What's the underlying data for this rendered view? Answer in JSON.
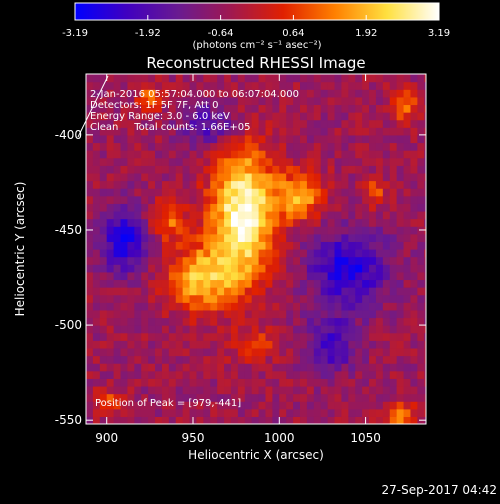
{
  "chart_data": {
    "type": "heatmap",
    "title": "Reconstructed RHESSI Image",
    "xlabel": "Heliocentric X (arcsec)",
    "ylabel": "Heliocentric Y (arcsec)",
    "xlim": [
      888,
      1085
    ],
    "ylim": [
      -552,
      -368
    ],
    "x_ticks": [
      900,
      950,
      1000,
      1050
    ],
    "y_ticks": [
      -400,
      -450,
      -500,
      -550
    ],
    "colorbar": {
      "min": -3.19,
      "max": 3.19,
      "ticks": [
        "-3.19",
        "-1.92",
        "-0.64",
        "0.64",
        "1.92",
        "3.19"
      ],
      "unit_label": "(photons cm⁻² s⁻¹ asec⁻²)",
      "colors": [
        "#0000ff",
        "#4000c0",
        "#6a1a90",
        "#a01850",
        "#e02000",
        "#ff8000",
        "#ffe040",
        "#ffffff"
      ]
    },
    "annotations": [
      "2-Jan-2016 05:57:04.000 to 06:07:04.000",
      "Detectors: 1F 5F 7F, Att 0",
      "Energy Range: 3.0 - 6.0 keV",
      "Clean     Total counts: 1.66E+05"
    ],
    "peak_label": "Position of Peak = [979,-441]",
    "peak": {
      "x": 979,
      "y": -441,
      "value": 3.19
    },
    "sources": [
      {
        "x": 979,
        "y": -441,
        "peak": 3.19,
        "sx": 13,
        "sy": 24
      },
      {
        "x": 955,
        "y": -475,
        "peak": 2.0,
        "sx": 14,
        "sy": 12
      },
      {
        "x": 1012,
        "y": -432,
        "peak": 1.7,
        "sx": 10,
        "sy": 9
      },
      {
        "x": 935,
        "y": -445,
        "peak": 1.1,
        "sx": 8,
        "sy": 7
      },
      {
        "x": 925,
        "y": -380,
        "peak": 1.1,
        "sx": 5,
        "sy": 5
      },
      {
        "x": 1072,
        "y": -385,
        "peak": 1.3,
        "sx": 6,
        "sy": 6
      },
      {
        "x": 1070,
        "y": -548,
        "peak": 1.3,
        "sx": 7,
        "sy": 5
      },
      {
        "x": 1055,
        "y": -430,
        "peak": 0.9,
        "sx": 5,
        "sy": 5
      },
      {
        "x": 985,
        "y": -510,
        "peak": 0.6,
        "sx": 10,
        "sy": 6
      },
      {
        "x": 900,
        "y": -540,
        "peak": 0.8,
        "sx": 6,
        "sy": 5
      }
    ],
    "negative_regions": [
      {
        "x": 910,
        "y": -455,
        "depth": 1.0,
        "sx": 10,
        "sy": 12
      },
      {
        "x": 1040,
        "y": -470,
        "depth": 1.0,
        "sx": 16,
        "sy": 14
      },
      {
        "x": 960,
        "y": -395,
        "depth": 0.7,
        "sx": 12,
        "sy": 8
      },
      {
        "x": 1030,
        "y": -510,
        "depth": 0.8,
        "sx": 10,
        "sy": 10
      }
    ],
    "grid": false
  },
  "footer": {
    "timestamp": "27-Sep-2017 04:42"
  }
}
